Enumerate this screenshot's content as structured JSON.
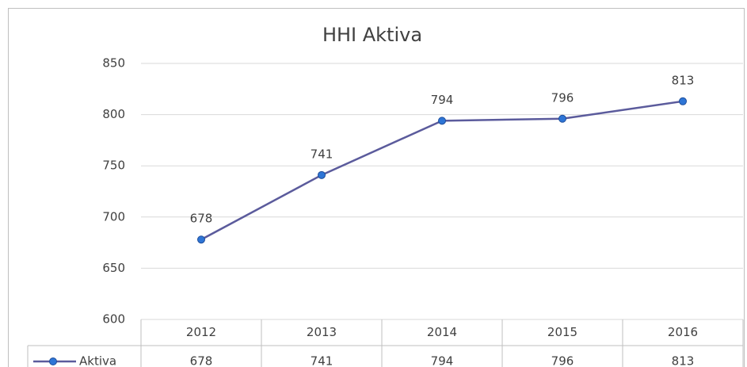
{
  "chart_data": {
    "type": "line",
    "title": "HHI Aktiva",
    "categories": [
      "2012",
      "2013",
      "2014",
      "2015",
      "2016"
    ],
    "series": [
      {
        "name": "Aktiva",
        "color": "#5b5b9c",
        "values": [
          678,
          741,
          794,
          796,
          813
        ]
      }
    ],
    "ylim": [
      600,
      850
    ],
    "yticks": [
      600,
      650,
      700,
      750,
      800,
      850
    ],
    "grid": true
  }
}
